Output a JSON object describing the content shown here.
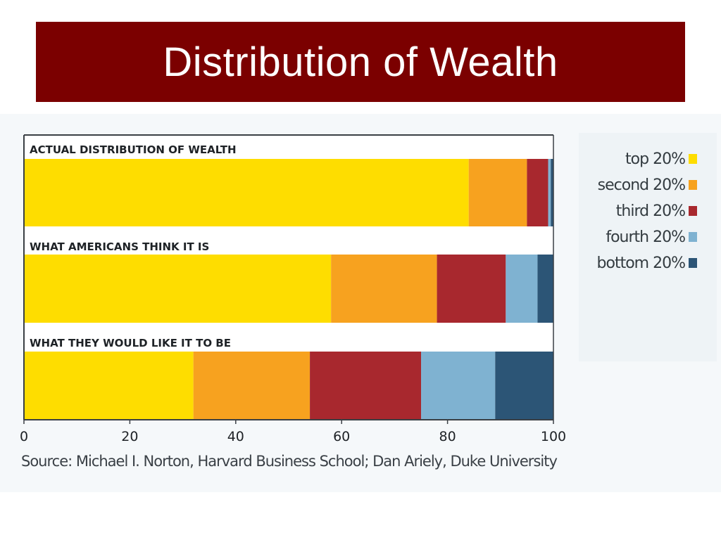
{
  "slide": {
    "title": "Distribution of Wealth",
    "source": "Source: Michael I. Norton, Harvard Business School; Dan Ariely, Duke University"
  },
  "colors": {
    "title_background": "#7b0000",
    "top_20": "#fedd00",
    "second_20": "#f7a21f",
    "third_20": "#a8282e",
    "fourth_20": "#7fb2d1",
    "bottom_20": "#2c5576"
  },
  "legend": [
    {
      "label": "top 20%",
      "color": "#fedd00"
    },
    {
      "label": "second 20%",
      "color": "#f7a21f"
    },
    {
      "label": "third 20%",
      "color": "#a8282e"
    },
    {
      "label": "fourth 20%",
      "color": "#7fb2d1"
    },
    {
      "label": "bottom 20%",
      "color": "#2c5576"
    }
  ],
  "chart_data": {
    "type": "bar",
    "orientation": "horizontal",
    "stacked": true,
    "categories": [
      "ACTUAL DISTRIBUTION OF WEALTH",
      "WHAT AMERICANS THINK IT IS",
      "WHAT THEY WOULD LIKE IT TO BE"
    ],
    "series": [
      {
        "name": "top 20%",
        "values": [
          84,
          58,
          32
        ]
      },
      {
        "name": "second 20%",
        "values": [
          11,
          20,
          22
        ]
      },
      {
        "name": "third 20%",
        "values": [
          4,
          13,
          21
        ]
      },
      {
        "name": "fourth 20%",
        "values": [
          0.5,
          6,
          14
        ]
      },
      {
        "name": "bottom 20%",
        "values": [
          0.5,
          3,
          11
        ]
      }
    ],
    "xlim": [
      0,
      100
    ],
    "xticks": [
      0,
      20,
      40,
      60,
      80,
      100
    ],
    "title": "",
    "xlabel": "",
    "ylabel": "",
    "grid": false,
    "legend_position": "right"
  }
}
